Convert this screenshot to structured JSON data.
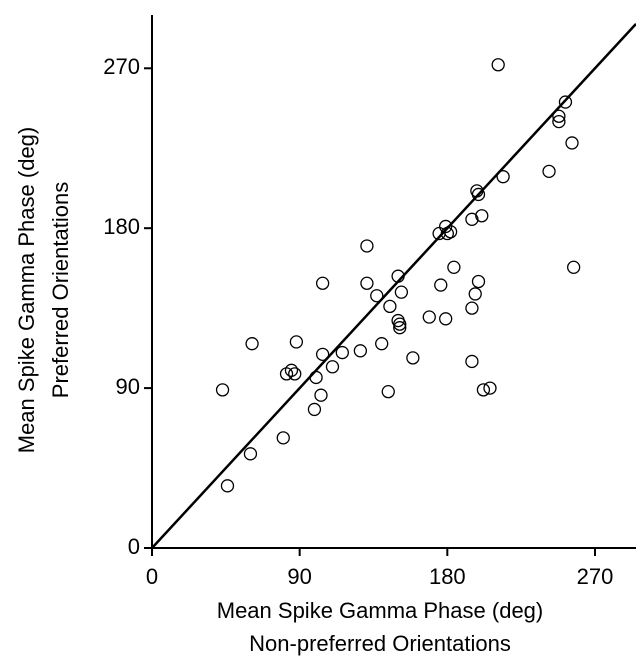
{
  "chart_data": {
    "type": "scatter",
    "xlabel": [
      "Mean Spike Gamma Phase (deg)",
      "Non-preferred Orientations"
    ],
    "ylabel": [
      "Mean Spike Gamma Phase (deg)",
      "Preferred  Orientations"
    ],
    "xlim": [
      0,
      295
    ],
    "ylim": [
      0,
      300
    ],
    "xticks": [
      0,
      90,
      180,
      270
    ],
    "yticks": [
      0,
      90,
      180,
      270
    ],
    "color": "#000000",
    "identity_line": true,
    "x": [
      43,
      46,
      60,
      61,
      80,
      82,
      85,
      87,
      88,
      99,
      100,
      103,
      104,
      104,
      110,
      116,
      127,
      131,
      131,
      137,
      140,
      144,
      145,
      150,
      150,
      151,
      151,
      152,
      159,
      169,
      175,
      176,
      179,
      179,
      180,
      182,
      184,
      195,
      195,
      195,
      197,
      198,
      199,
      199,
      201,
      202,
      206,
      211,
      214,
      242,
      248,
      248,
      252,
      256,
      257
    ],
    "values": [
      89,
      35,
      53,
      115,
      62,
      98,
      100,
      98,
      116,
      78,
      96,
      86,
      149,
      109,
      102,
      110,
      111,
      170,
      149,
      142,
      115,
      88,
      136,
      128,
      153,
      126,
      124,
      144,
      107,
      130,
      177,
      148,
      181,
      129,
      177,
      178,
      158,
      185,
      135,
      105,
      143,
      201,
      199,
      150,
      187,
      89,
      90,
      272,
      209,
      212,
      240,
      243,
      251,
      228,
      158
    ]
  }
}
